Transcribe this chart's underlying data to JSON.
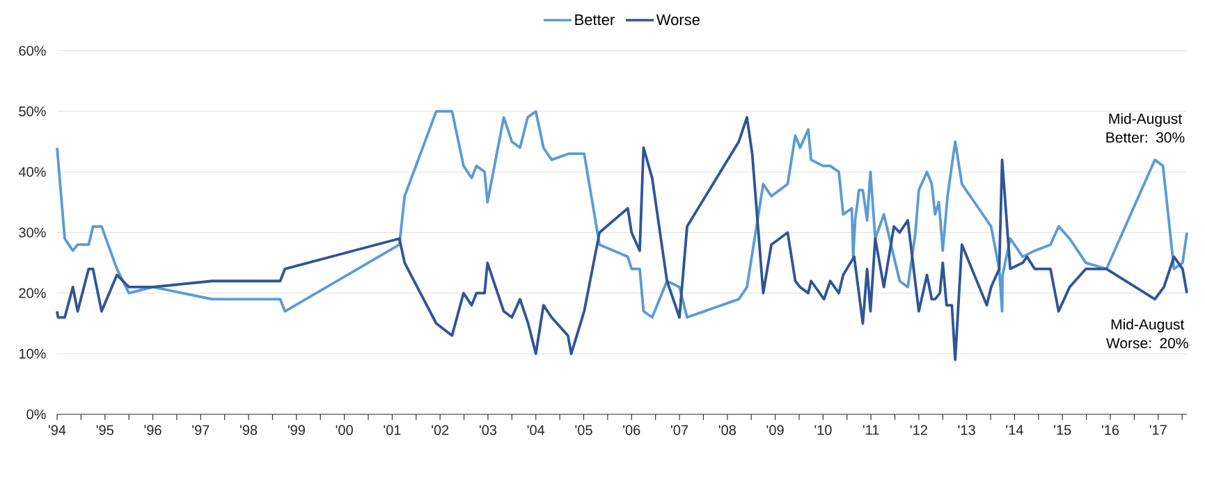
{
  "chart_data": {
    "type": "line",
    "xlim": [
      1994,
      2017.6
    ],
    "ylim": [
      0,
      60
    ],
    "xticks": [
      {
        "value": 1994,
        "label": "'94"
      },
      {
        "value": 1994.5,
        "label": null
      },
      {
        "value": 1995,
        "label": "'95"
      },
      {
        "value": 1995.5,
        "label": null
      },
      {
        "value": 1996,
        "label": "'96"
      },
      {
        "value": 1996.5,
        "label": null
      },
      {
        "value": 1997,
        "label": "'97"
      },
      {
        "value": 1997.5,
        "label": null
      },
      {
        "value": 1998,
        "label": "'98"
      },
      {
        "value": 1998.5,
        "label": null
      },
      {
        "value": 1999,
        "label": "'99"
      },
      {
        "value": 1999.5,
        "label": null
      },
      {
        "value": 2000,
        "label": "'00"
      },
      {
        "value": 2000.5,
        "label": null
      },
      {
        "value": 2001,
        "label": "'01"
      },
      {
        "value": 2001.5,
        "label": null
      },
      {
        "value": 2002,
        "label": "'02"
      },
      {
        "value": 2002.5,
        "label": null
      },
      {
        "value": 2003,
        "label": "'03"
      },
      {
        "value": 2003.5,
        "label": null
      },
      {
        "value": 2004,
        "label": "'04"
      },
      {
        "value": 2004.5,
        "label": null
      },
      {
        "value": 2005,
        "label": "'05"
      },
      {
        "value": 2005.5,
        "label": null
      },
      {
        "value": 2006,
        "label": "'06"
      },
      {
        "value": 2006.5,
        "label": null
      },
      {
        "value": 2007,
        "label": "'07"
      },
      {
        "value": 2007.5,
        "label": null
      },
      {
        "value": 2008,
        "label": "'08"
      },
      {
        "value": 2008.5,
        "label": null
      },
      {
        "value": 2009,
        "label": "'09"
      },
      {
        "value": 2009.5,
        "label": null
      },
      {
        "value": 2010,
        "label": "'10"
      },
      {
        "value": 2010.5,
        "label": null
      },
      {
        "value": 2011,
        "label": "'11"
      },
      {
        "value": 2011.5,
        "label": null
      },
      {
        "value": 2012,
        "label": "'12"
      },
      {
        "value": 2012.5,
        "label": null
      },
      {
        "value": 2013,
        "label": "'13"
      },
      {
        "value": 2013.5,
        "label": null
      },
      {
        "value": 2014,
        "label": "'14"
      },
      {
        "value": 2014.5,
        "label": null
      },
      {
        "value": 2015,
        "label": "'15"
      },
      {
        "value": 2015.5,
        "label": null
      },
      {
        "value": 2016,
        "label": "'16"
      },
      {
        "value": 2016.5,
        "label": null
      },
      {
        "value": 2017,
        "label": "'17"
      },
      {
        "value": 2017.5,
        "label": null
      }
    ],
    "yticks": [
      {
        "value": 0,
        "label": "0%"
      },
      {
        "value": 10,
        "label": "10%"
      },
      {
        "value": 20,
        "label": "20%"
      },
      {
        "value": 30,
        "label": "30%"
      },
      {
        "value": 40,
        "label": "40%"
      },
      {
        "value": 50,
        "label": "50%"
      },
      {
        "value": 60,
        "label": "60%"
      }
    ],
    "grid": "y",
    "legend": "top",
    "line_style": "solid",
    "annotations": [
      "Mid-August Better: 30%",
      "Mid-August Worse: 20%"
    ],
    "series": [
      {
        "name": "Better",
        "color": "#5b9bd5",
        "x": [
          1994.0,
          1994.16,
          1994.33,
          1994.43,
          1994.66,
          1994.75,
          1994.93,
          1995.25,
          1995.5,
          1996.0,
          1997.24,
          1998.66,
          1998.76,
          2001.15,
          2001.26,
          2001.92,
          2002.25,
          2002.49,
          2002.66,
          2002.76,
          2002.93,
          2002.99,
          2003.33,
          2003.5,
          2003.67,
          2003.83,
          2004.0,
          2004.16,
          2004.33,
          2004.68,
          2005.01,
          2005.33,
          2005.92,
          2006.0,
          2006.17,
          2006.25,
          2006.43,
          2006.74,
          2007.0,
          2007.16,
          2008.24,
          2008.41,
          2008.75,
          2008.92,
          2009.26,
          2009.42,
          2009.52,
          2009.69,
          2009.75,
          2010.0,
          2010.15,
          2010.33,
          2010.42,
          2010.6,
          2010.63,
          2010.67,
          2010.75,
          2010.83,
          2010.92,
          2010.99,
          2011.09,
          2011.27,
          2011.6,
          2011.77,
          2011.93,
          2012.0,
          2012.17,
          2012.27,
          2012.34,
          2012.42,
          2012.5,
          2012.6,
          2012.76,
          2012.9,
          2013.51,
          2013.68,
          2013.74,
          2013.75,
          2013.91,
          2014.17,
          2014.42,
          2014.75,
          2014.92,
          2015.15,
          2015.49,
          2015.92,
          2016.93,
          2017.1,
          2017.33,
          2017.51,
          2017.6
        ],
        "values": [
          44,
          29,
          27,
          28,
          28,
          31,
          31,
          24,
          20,
          21,
          19,
          19,
          17,
          28,
          36,
          50,
          50,
          41,
          39,
          41,
          40,
          35,
          49,
          45,
          44,
          49,
          50,
          44,
          42,
          43,
          43,
          28,
          26,
          24,
          24,
          17,
          16,
          22,
          21,
          16,
          19,
          21,
          38,
          36,
          38,
          46,
          44,
          47,
          42,
          41,
          41,
          40,
          33,
          34,
          26,
          32,
          37,
          37,
          32,
          40,
          29,
          33,
          22,
          21,
          30,
          37,
          40,
          38,
          33,
          35,
          27,
          36,
          45,
          38,
          31,
          24,
          17,
          23,
          29,
          26,
          27,
          28,
          31,
          29,
          25,
          24,
          42,
          41,
          24,
          25,
          30
        ]
      },
      {
        "name": "Worse",
        "color": "#2f5597",
        "x": [
          1994.0,
          1994.02,
          1994.16,
          1994.33,
          1994.43,
          1994.66,
          1994.75,
          1994.93,
          1995.25,
          1995.5,
          1996.0,
          1997.24,
          1998.66,
          1998.76,
          2001.15,
          2001.26,
          2001.92,
          2002.25,
          2002.49,
          2002.66,
          2002.76,
          2002.93,
          2002.99,
          2003.33,
          2003.5,
          2003.67,
          2003.84,
          2004.0,
          2004.16,
          2004.33,
          2004.67,
          2004.74,
          2005.01,
          2005.33,
          2005.92,
          2006.0,
          2006.17,
          2006.25,
          2006.43,
          2006.74,
          2007.0,
          2007.16,
          2008.24,
          2008.41,
          2008.52,
          2008.75,
          2008.92,
          2009.26,
          2009.42,
          2009.52,
          2009.69,
          2009.75,
          2010.02,
          2010.15,
          2010.33,
          2010.42,
          2010.65,
          2010.83,
          2010.92,
          2010.99,
          2011.09,
          2011.27,
          2011.48,
          2011.6,
          2011.77,
          2012.0,
          2012.17,
          2012.27,
          2012.34,
          2012.44,
          2012.5,
          2012.58,
          2012.69,
          2012.76,
          2012.9,
          2013.42,
          2013.51,
          2013.68,
          2013.74,
          2013.91,
          2014.17,
          2014.26,
          2014.42,
          2014.75,
          2014.92,
          2015.15,
          2015.49,
          2015.92,
          2016.93,
          2017.12,
          2017.33,
          2017.51,
          2017.6
        ],
        "values": [
          17,
          16,
          16,
          21,
          17,
          24,
          24,
          17,
          23,
          21,
          21,
          22,
          22,
          24,
          29,
          25,
          15,
          13,
          20,
          18,
          20,
          20,
          25,
          17,
          16,
          19,
          15,
          10,
          18,
          16,
          13,
          10,
          17,
          30,
          34,
          30,
          27,
          44,
          39,
          22,
          16,
          31,
          45,
          49,
          43,
          20,
          28,
          30,
          22,
          21,
          20,
          22,
          19,
          22,
          20,
          23,
          26,
          15,
          24,
          17,
          29,
          21,
          31,
          30,
          32,
          17,
          23,
          19,
          19,
          20,
          25,
          18,
          18,
          9,
          28,
          18,
          21,
          24,
          42,
          24,
          25,
          26,
          24,
          24,
          17,
          21,
          24,
          24,
          19,
          21,
          26,
          24,
          20
        ]
      }
    ]
  }
}
